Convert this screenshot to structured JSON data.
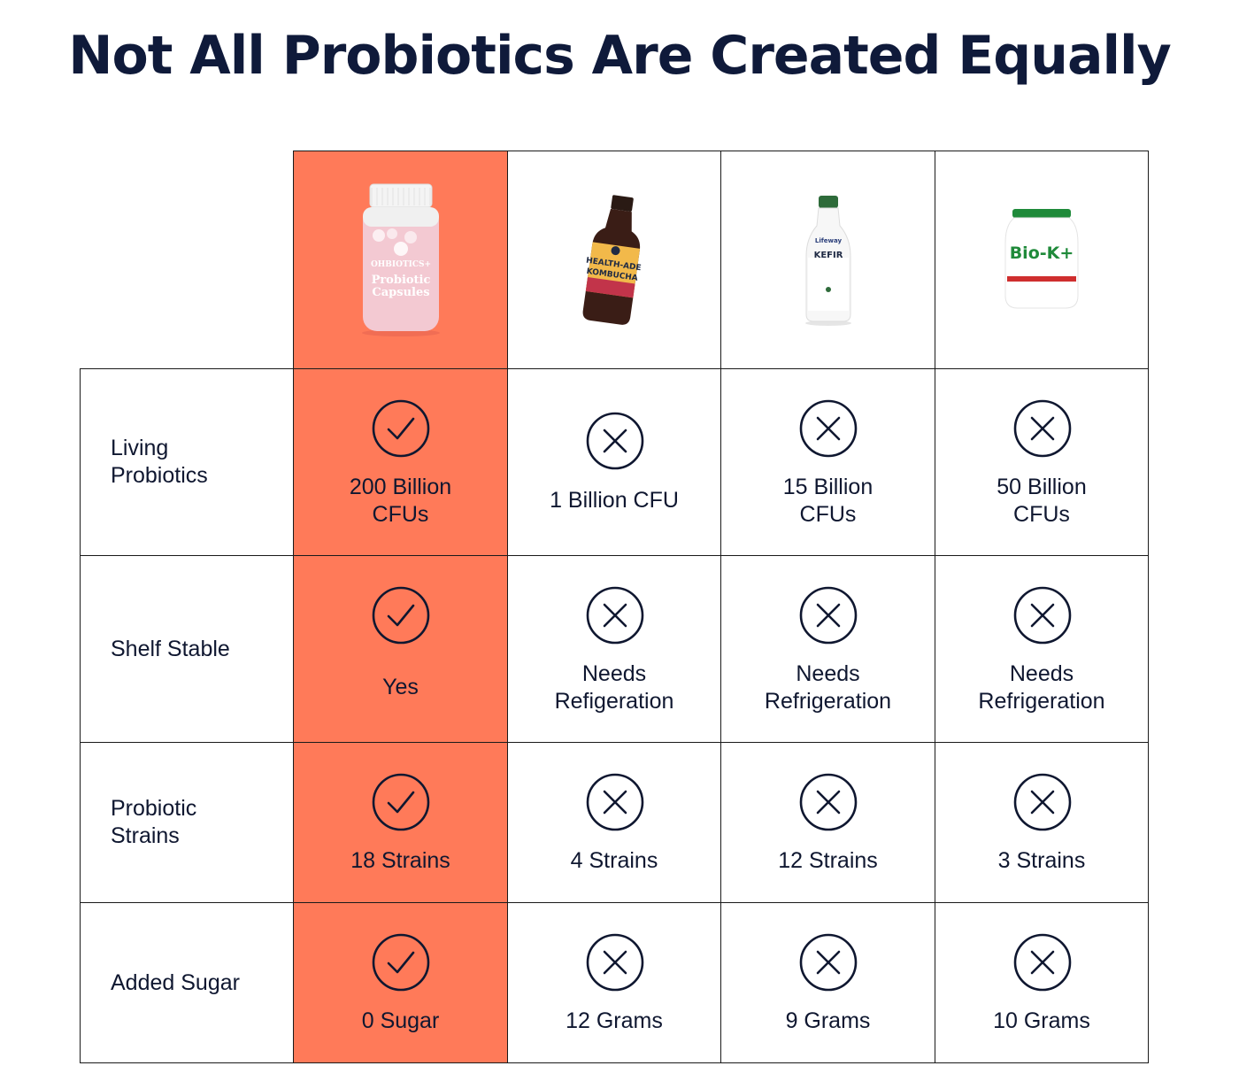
{
  "title": "Not All Probiotics Are Created Equally",
  "colors": {
    "highlight": "#ff7a59",
    "ink": "#0f1730",
    "border": "#1a1a1a"
  },
  "products": [
    {
      "name": "ohbiotics-capsules",
      "image_icon": "pink-capsule-bottle",
      "highlight": true,
      "label_lines": [
        "OHBIOTICS+",
        "Probiotic",
        "Capsules"
      ]
    },
    {
      "name": "health-ade-kombucha",
      "image_icon": "kombucha-bottle",
      "highlight": false,
      "label_lines": [
        "HEALTH-ADE",
        "KOMBUCHA"
      ]
    },
    {
      "name": "lifeway-kefir",
      "image_icon": "kefir-bottle",
      "highlight": false,
      "label_lines": [
        "Lifeway",
        "KEFIR"
      ]
    },
    {
      "name": "bio-k-plus",
      "image_icon": "bio-k-bottle",
      "highlight": false,
      "label_lines": [
        "Bio-K+"
      ]
    }
  ],
  "rows": [
    {
      "label": "Living\nProbiotics",
      "values": [
        {
          "status": "check",
          "text": "200 Billion\nCFUs"
        },
        {
          "status": "cross",
          "text": "1 Billion CFU"
        },
        {
          "status": "cross",
          "text": "15 Billion\nCFUs"
        },
        {
          "status": "cross",
          "text": "50 Billion\nCFUs"
        }
      ]
    },
    {
      "label": "Shelf Stable",
      "values": [
        {
          "status": "check",
          "text": "Yes"
        },
        {
          "status": "cross",
          "text": "Needs\nRefigeration"
        },
        {
          "status": "cross",
          "text": "Needs\nRefrigeration"
        },
        {
          "status": "cross",
          "text": "Needs\nRefrigeration"
        }
      ]
    },
    {
      "label": "Probiotic\nStrains",
      "values": [
        {
          "status": "check",
          "text": "18 Strains"
        },
        {
          "status": "cross",
          "text": "4 Strains"
        },
        {
          "status": "cross",
          "text": "12 Strains"
        },
        {
          "status": "cross",
          "text": "3 Strains"
        }
      ]
    },
    {
      "label": "Added Sugar",
      "values": [
        {
          "status": "check",
          "text": "0 Sugar"
        },
        {
          "status": "cross",
          "text": "12 Grams"
        },
        {
          "status": "cross",
          "text": "9 Grams"
        },
        {
          "status": "cross",
          "text": "10 Grams"
        }
      ]
    }
  ]
}
